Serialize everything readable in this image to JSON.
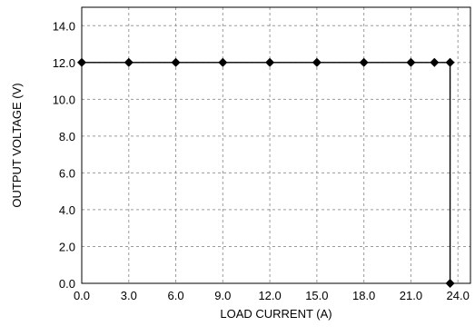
{
  "chart_data": {
    "type": "line",
    "title": "",
    "xlabel": "LOAD CURRENT (A)",
    "ylabel": "OUTPUT VOLTAGE (V)",
    "xlim": [
      0,
      24.8
    ],
    "ylim": [
      0,
      15
    ],
    "x_ticks": [
      0,
      3,
      6,
      9,
      12,
      15,
      18,
      21,
      24
    ],
    "x_tick_labels": [
      "0.0",
      "3.0",
      "6.0",
      "9.0",
      "12.0",
      "15.0",
      "18.0",
      "21.0",
      "24.0"
    ],
    "y_ticks": [
      0,
      2,
      4,
      6,
      8,
      10,
      12,
      14
    ],
    "y_tick_labels": [
      "0.0",
      "2.0",
      "4.0",
      "6.0",
      "8.0",
      "10.0",
      "12.0",
      "14.0"
    ],
    "grid": true,
    "legend": "none",
    "series": [
      {
        "color": "#000000",
        "marker": "diamond",
        "x": [
          0,
          3,
          6,
          9,
          12,
          15,
          18,
          21,
          22.5,
          23.5,
          23.5
        ],
        "y": [
          12,
          12,
          12,
          12,
          12,
          12,
          12,
          12,
          12,
          12,
          0
        ]
      }
    ]
  }
}
